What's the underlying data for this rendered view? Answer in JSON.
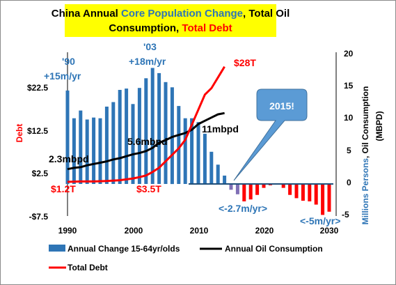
{
  "colors": {
    "bar": "#2e75b6",
    "oil": "#000000",
    "debt": "#ff0000",
    "title_bg": "#ffff00",
    "accent_blue": "#2e75b6",
    "callout_fill": "#5b9bd5"
  },
  "chart_data": {
    "type": "bar",
    "title": {
      "line1_a": "China Annual ",
      "line1_b": "Core Population Change",
      "line1_c": ", Total Oil",
      "line2_a": "Consumption, ",
      "line2_b": "Total Debt"
    },
    "left_axis": {
      "label": "Debt",
      "ticks": [
        "$22.5",
        "$12.5",
        "$2.5",
        "-$7.5"
      ],
      "tick_values": [
        22.5,
        12.5,
        2.5,
        -7.5
      ],
      "range": [
        -7.5,
        22.5
      ]
    },
    "right_axis": {
      "label_a": "Millions Persons",
      "label_b": ", Oil Consumption",
      "label_c": "(MBPD)",
      "ticks": [
        "20",
        "15",
        "10",
        "5",
        "0",
        "-5"
      ],
      "tick_values": [
        20,
        15,
        10,
        5,
        0,
        -5
      ],
      "range": [
        -5,
        20
      ]
    },
    "x_axis": {
      "ticks": [
        "1990",
        "2000",
        "2010",
        "2020",
        "2030"
      ],
      "tick_values": [
        1990,
        2000,
        2010,
        2020,
        2030
      ],
      "range": [
        1990,
        2030
      ]
    },
    "series": [
      {
        "name": "Annual Change 15-64yr/olds",
        "kind": "bar",
        "axis": "right",
        "x": [
          1990,
          1991,
          1992,
          1993,
          1994,
          1995,
          1996,
          1997,
          1998,
          1999,
          2000,
          2001,
          2002,
          2003,
          2004,
          2005,
          2006,
          2007,
          2008,
          2009,
          2010,
          2011,
          2012,
          2013,
          2014,
          2015,
          2016,
          2017,
          2018,
          2019,
          2020,
          2021,
          2022,
          2023,
          2024,
          2025,
          2026,
          2027,
          2028,
          2029,
          2030
        ],
        "values": [
          14.5,
          10.2,
          11.4,
          10.0,
          10.3,
          10.2,
          12.0,
          12.7,
          14.6,
          14.8,
          12.4,
          14.9,
          16.4,
          18.0,
          17.2,
          15.8,
          15.0,
          12.1,
          10.2,
          10.2,
          9.6,
          7.8,
          5.0,
          3.0,
          1.3,
          -0.9,
          -1.6,
          -2.7,
          -2.4,
          -1.7,
          -0.6,
          -0.2,
          -0.1,
          -0.6,
          -1.7,
          -2.2,
          -2.6,
          -2.7,
          -3.2,
          -4.8,
          -4.3
        ]
      },
      {
        "name": "Annual Oil Consumption",
        "kind": "line",
        "axis": "right",
        "x": [
          1990,
          1991,
          1992,
          1993,
          1994,
          1995,
          1996,
          1997,
          1998,
          1999,
          2000,
          2001,
          2002,
          2003,
          2004,
          2005,
          2006,
          2007,
          2008,
          2009,
          2010,
          2011,
          2012,
          2013,
          2014
        ],
        "values": [
          2.3,
          2.5,
          2.6,
          2.9,
          3.1,
          3.3,
          3.5,
          3.8,
          4.0,
          4.3,
          4.6,
          4.8,
          5.1,
          5.6,
          6.4,
          6.8,
          7.3,
          7.6,
          7.9,
          8.4,
          9.3,
          9.8,
          10.3,
          10.8,
          11.0
        ]
      },
      {
        "name": "Total Debt",
        "kind": "line",
        "axis": "left",
        "x": [
          1990,
          1992,
          1994,
          1996,
          1998,
          2000,
          2001,
          2002,
          2003,
          2004,
          2005,
          2006,
          2007,
          2008,
          2009,
          2010,
          2011,
          2012,
          2013,
          2014
        ],
        "values": [
          1.2,
          1.3,
          1.3,
          1.4,
          1.6,
          2.0,
          2.3,
          2.7,
          3.5,
          4.5,
          6.0,
          7.5,
          9.0,
          11.0,
          14.5,
          18.0,
          21.5,
          23.0,
          25.5,
          28.0
        ]
      }
    ],
    "annotations": {
      "y90": "'90",
      "r90": "+15m/yr",
      "y03": "'03",
      "r03": "+18m/yr",
      "debt_2014": "$28T",
      "debt_1990": "$1.2T",
      "debt_2003": "$3.5T",
      "oil_1990": "2.3mbpd",
      "oil_2003": "5.6mbpd",
      "oil_2014": "11mbpd",
      "pop_2020": "<-2.7m/yr>",
      "pop_2030": "<-5m/yr>",
      "callout": "2015!"
    },
    "legend": {
      "position": "bottom",
      "items": [
        "Annual Change 15-64yr/olds",
        "Annual Oil Consumption",
        "Total Debt"
      ]
    },
    "grid": false
  }
}
